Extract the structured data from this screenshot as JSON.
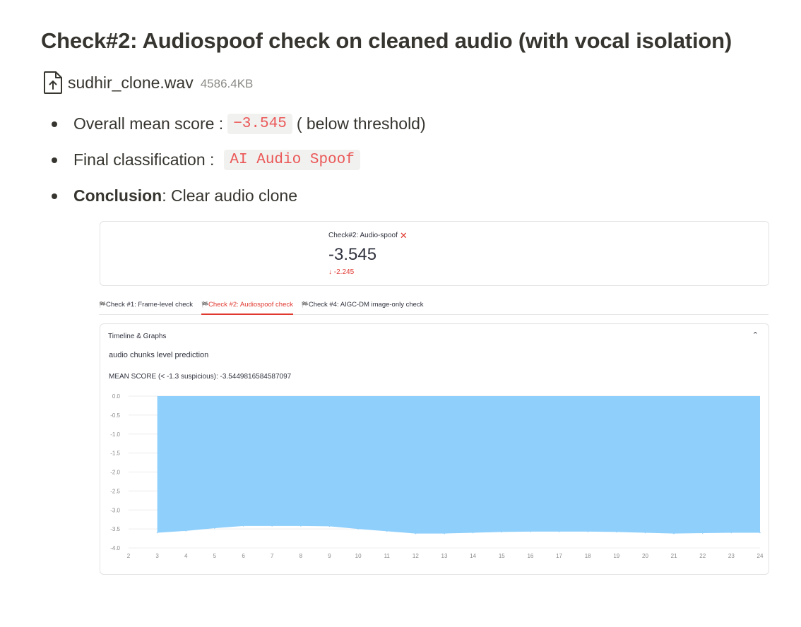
{
  "page": {
    "title": "Check#2: Audiospoof check on cleaned audio (with vocal isolation)"
  },
  "file": {
    "name": "sudhir_clone.wav",
    "size": "4586.4KB",
    "icon": "file-upload-icon"
  },
  "bullets": {
    "score_label": "Overall mean score :",
    "score_value": "−3.545",
    "score_suffix": "( below threshold)",
    "class_label": "Final classification :",
    "class_value": "AI Audio Spoof",
    "conclusion_label": "Conclusion",
    "conclusion_text": ": Clear audio clone"
  },
  "metric": {
    "label": "Check#2: Audio-spoof",
    "value": "-3.545",
    "delta": "-2.245",
    "status_icon": "x-icon"
  },
  "tabs": [
    {
      "label": "Check #1: Frame-level check",
      "active": false
    },
    {
      "label": "Check #2: Audiospoof check",
      "active": true
    },
    {
      "label": "Check #4: AIGC-DM image-only check",
      "active": false
    }
  ],
  "expander": {
    "title": "Timeline & Graphs",
    "subtitle": "audio chunks level prediction",
    "mean_text": "MEAN SCORE (< -1.3 suspicious): -3.5449816584587097"
  },
  "chart_data": {
    "type": "area",
    "x": [
      3,
      4,
      5,
      6,
      7,
      8,
      9,
      10,
      11,
      12,
      13,
      14,
      15,
      16,
      17,
      18,
      19,
      20,
      21,
      22,
      23,
      24
    ],
    "y": [
      -3.6,
      -3.55,
      -3.48,
      -3.42,
      -3.42,
      -3.42,
      -3.43,
      -3.5,
      -3.56,
      -3.62,
      -3.62,
      -3.6,
      -3.58,
      -3.57,
      -3.57,
      -3.57,
      -3.58,
      -3.6,
      -3.62,
      -3.61,
      -3.6,
      -3.6
    ],
    "xticks": [
      2,
      3,
      4,
      5,
      6,
      7,
      8,
      9,
      10,
      11,
      12,
      13,
      14,
      15,
      16,
      17,
      18,
      19,
      20,
      21,
      22,
      23,
      24
    ],
    "yticks": [
      "0.0",
      "-0.5",
      "-1.0",
      "-1.5",
      "-2.0",
      "-2.5",
      "-3.0",
      "-3.5",
      "-4.0"
    ],
    "xlim": [
      2,
      24
    ],
    "ylim": [
      -4.0,
      0.0
    ],
    "fill_color": "#8ecffc",
    "grid": true
  },
  "colors": {
    "accent": "#e0382f",
    "code_text": "#eb5757",
    "area": "#8ecffc"
  }
}
